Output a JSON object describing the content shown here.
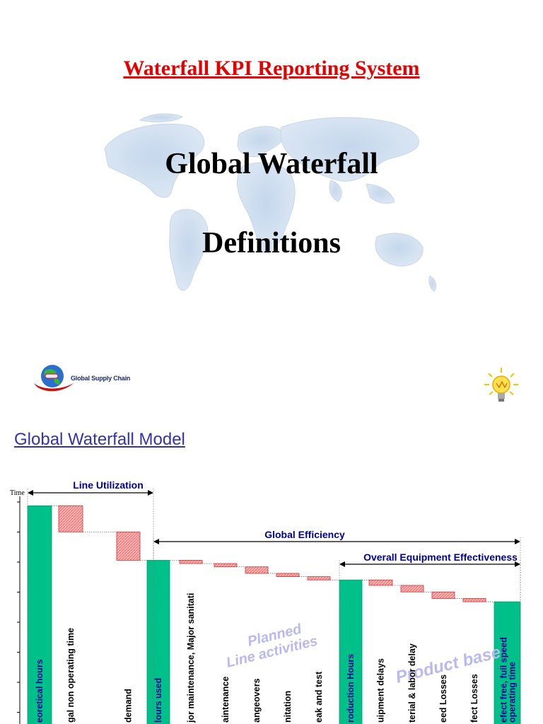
{
  "slide": {
    "title": "Waterfall KPI Reporting System",
    "heading_line1": "Global Waterfall",
    "heading_line2": "Definitions",
    "logo_text": "Global Supply Chain",
    "logo_icon": "globe-swoosh-logo",
    "decor_icon": "lightbulb-icon"
  },
  "model_title": "Global Waterfall Model",
  "colors": {
    "total": "#00c08a",
    "loss": "#f5a0a0",
    "title_red": "#e60000",
    "annot_blue": "#000099",
    "overlay_text": "#b9b9f0"
  },
  "chart_data": {
    "type": "waterfall",
    "y_axis_label": "Time",
    "categories": [
      "Theoretical hours",
      "Legal non operating time",
      "No demand",
      "Hours used",
      "Major maintenance, Major sanitation",
      "Maintenance",
      "Changeovers",
      "Sanitation",
      "Break and test",
      "Production Hours",
      "Equipment delays",
      "Material & labor delay",
      "Speed Losses",
      "Defect Losses",
      "Defect free, full speed operating time"
    ],
    "visible_labels": [
      "eoretical hours",
      "gal non operating time",
      "demand",
      "lours used",
      "jor maintenance, Major sanitati",
      "aintenance",
      "angeovers",
      "nitation",
      "eak and test",
      "roduction Hours",
      "uipment delays",
      "terial & labor delay",
      "eed Losses",
      "fect Losses",
      "efect free, full speed operating time"
    ],
    "kinds": [
      "total",
      "loss",
      "loss",
      "total",
      "loss",
      "loss",
      "loss",
      "loss",
      "loss",
      "total",
      "loss",
      "loss",
      "loss",
      "loss",
      "total"
    ],
    "values": [
      100,
      12,
      13,
      75,
      1.5,
      1.5,
      3,
      1.5,
      1.5,
      66,
      2.5,
      3,
      3,
      1.5,
      56
    ],
    "ymax": 103,
    "brackets": [
      {
        "label": "Line Utilization",
        "from": 0,
        "to": 3
      },
      {
        "label": "Global Efficiency",
        "from": 3,
        "to": 14
      },
      {
        "label": "Overall Equipment Effectiveness",
        "from": 9,
        "to": 14
      }
    ],
    "overlays": [
      "Planned",
      "Line activities",
      "Product base"
    ]
  }
}
